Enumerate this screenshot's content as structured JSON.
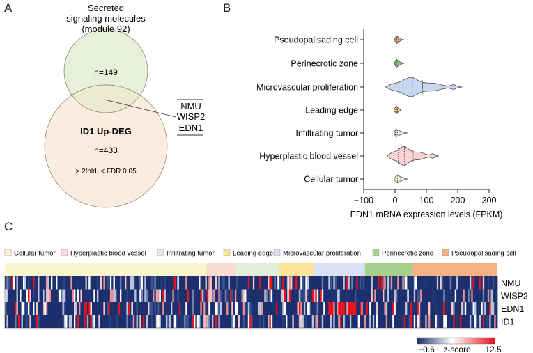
{
  "panels": {
    "a": "A",
    "b": "B",
    "c": "C"
  },
  "venn": {
    "top_title": [
      "Secreted",
      "signaling molecules",
      "(module 92)"
    ],
    "top_count": "n=149",
    "bottom_title": "ID1 Up-DEG",
    "bottom_count": "n=433",
    "bottom_note": "> 2fold, < FDR 0.05",
    "overlap_genes": [
      "NMU",
      "WISP2",
      "EDN1"
    ],
    "colors": {
      "top": "#e8f0da",
      "bottom": "#fcebdf",
      "overlap": "#ebebd0"
    }
  },
  "chart_data": [
    {
      "type": "violin",
      "xlabel": "EDN1 mRNA expression levels (FPKM)",
      "xlim": [
        -100,
        300
      ],
      "xticks": [
        -100,
        0,
        100,
        200,
        300
      ],
      "categories": [
        "Pseudopalisading cell",
        "Perinecrotic zone",
        "Microvascular proliferation",
        "Leading edge",
        "Infiltrating tumor",
        "Hyperplastic blood vessel",
        "Cellular tumor"
      ],
      "series": [
        {
          "category": "Pseudopalisading cell",
          "color": "#f3b27c",
          "min": -2,
          "q1": 3,
          "median": 6,
          "q3": 10,
          "max": 28
        },
        {
          "category": "Perinecrotic zone",
          "color": "#8cc77d",
          "min": -2,
          "q1": 2,
          "median": 5,
          "q3": 9,
          "max": 30
        },
        {
          "category": "Microvascular proliferation",
          "color": "#c8d7f0",
          "min": -30,
          "q1": 25,
          "median": 55,
          "q3": 88,
          "max": 215
        },
        {
          "category": "Leading edge",
          "color": "#f8d98a",
          "min": -3,
          "q1": 2,
          "median": 5,
          "q3": 8,
          "max": 20
        },
        {
          "category": "Infiltrating tumor",
          "color": "#d4ecd4",
          "min": -3,
          "q1": 1,
          "median": 4,
          "q3": 8,
          "max": 40
        },
        {
          "category": "Hyperplastic blood vessel",
          "color": "#f8d3d3",
          "min": -25,
          "q1": 10,
          "median": 30,
          "q3": 58,
          "max": 140
        },
        {
          "category": "Cellular tumor",
          "color": "#f2f2d2",
          "min": -3,
          "q1": 3,
          "median": 8,
          "q3": 18,
          "max": 40
        }
      ]
    },
    {
      "type": "heatmap",
      "rows": [
        "NMU",
        "WISP2",
        "EDN1",
        "ID1"
      ],
      "legend_entries": [
        {
          "label": "Cellular tumor",
          "color": "#fbf5cf"
        },
        {
          "label": "Hyperplastic blood vessel",
          "color": "#f9dcd2"
        },
        {
          "label": "Infiltrating tumor",
          "color": "#e1efd9"
        },
        {
          "label": "Leading edge",
          "color": "#fde49a"
        },
        {
          "label": "Microvascular proliferation",
          "color": "#d9e1f4"
        },
        {
          "label": "Perinecrotic zone",
          "color": "#a8d08d"
        },
        {
          "label": "Pseudopalisading cell",
          "color": "#f4b183"
        }
      ],
      "group_fractions": [
        0.409,
        0.06,
        0.088,
        0.07,
        0.104,
        0.097,
        0.172
      ],
      "colorbar": {
        "min_label": "−0.6",
        "max_label": "12.5",
        "title": "z-score",
        "low": "#1c2f6e",
        "mid": "#ffffff",
        "high": "#e8121b"
      }
    }
  ]
}
